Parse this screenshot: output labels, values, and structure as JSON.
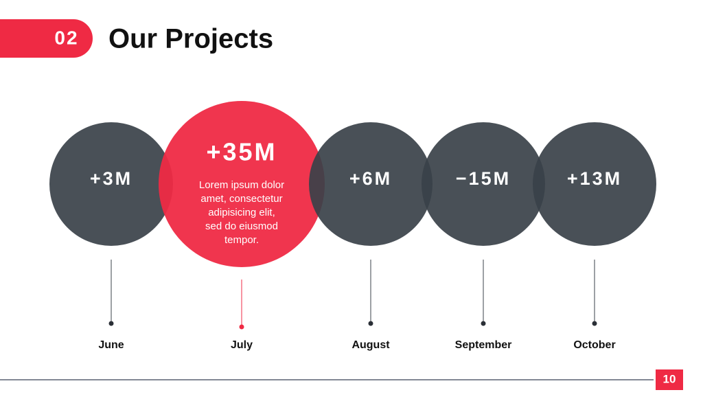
{
  "header": {
    "number": "02",
    "title": "Our Projects"
  },
  "items": [
    {
      "value": "+3M",
      "month": "June",
      "highlight": false
    },
    {
      "value": "+35M",
      "month": "July",
      "highlight": true,
      "description": "Lorem ipsum dolor amet, consectetur adipisicing elit, sed do eiusmod tempor."
    },
    {
      "value": "+6M",
      "month": "August",
      "highlight": false
    },
    {
      "value": "−15M",
      "month": "September",
      "highlight": false
    },
    {
      "value": "+13M",
      "month": "October",
      "highlight": false
    }
  ],
  "page_number": "10"
}
